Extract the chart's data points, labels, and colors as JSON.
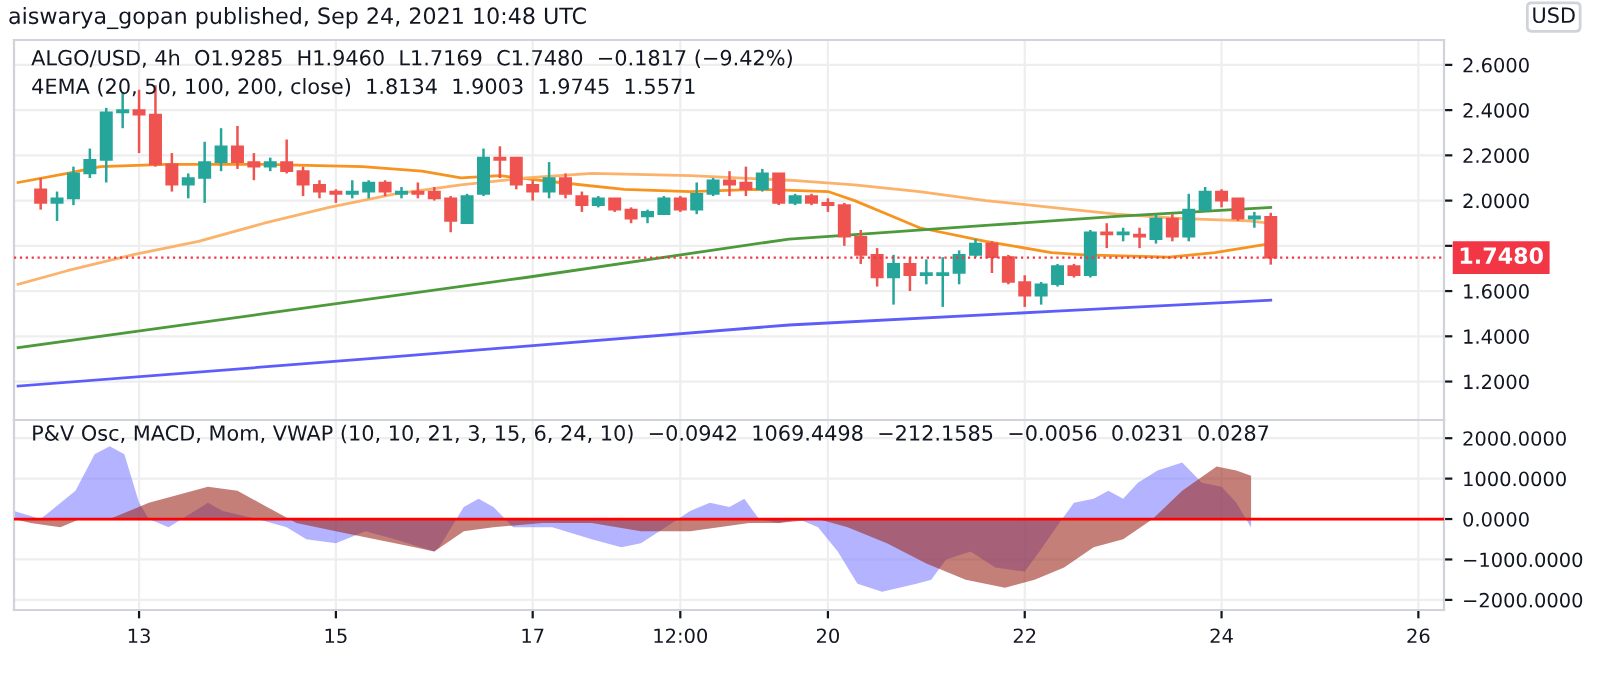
{
  "chart_data": [
    {
      "type": "candlestick",
      "title": "aiswarya_gopan published, Sep 24, 2021 10:48 UTC",
      "ylabel": "USD",
      "annotations": [
        "ALGO/USD, 4h  O1.9285  H1.9460  L1.7169  C1.7480  −0.1817 (−9.42%)",
        "4EMA (20, 50, 100, 200, close)  1.8134  1.9003  1.9745  1.5571"
      ],
      "x": [
        "2021-09-12T00:00",
        "2021-09-12T04:00",
        "2021-09-12T08:00",
        "2021-09-12T12:00",
        "2021-09-12T16:00",
        "2021-09-12T20:00",
        "2021-09-13T00:00",
        "2021-09-13T04:00",
        "2021-09-13T08:00",
        "2021-09-13T12:00",
        "2021-09-13T16:00",
        "2021-09-13T20:00",
        "2021-09-14T00:00",
        "2021-09-14T04:00",
        "2021-09-14T08:00",
        "2021-09-14T12:00",
        "2021-09-14T16:00",
        "2021-09-14T20:00",
        "2021-09-15T00:00",
        "2021-09-15T04:00",
        "2021-09-15T08:00",
        "2021-09-15T12:00",
        "2021-09-15T16:00",
        "2021-09-15T20:00",
        "2021-09-16T00:00",
        "2021-09-16T04:00",
        "2021-09-16T08:00",
        "2021-09-16T12:00",
        "2021-09-16T16:00",
        "2021-09-16T20:00",
        "2021-09-17T00:00",
        "2021-09-17T04:00",
        "2021-09-17T08:00",
        "2021-09-17T12:00",
        "2021-09-17T16:00",
        "2021-09-17T20:00",
        "2021-09-18T00:00",
        "2021-09-18T04:00",
        "2021-09-18T08:00",
        "2021-09-18T12:00",
        "2021-09-18T16:00",
        "2021-09-18T20:00",
        "2021-09-19T00:00",
        "2021-09-19T04:00",
        "2021-09-19T08:00",
        "2021-09-19T12:00",
        "2021-09-19T16:00",
        "2021-09-19T20:00",
        "2021-09-20T00:00",
        "2021-09-20T04:00",
        "2021-09-20T08:00",
        "2021-09-20T12:00",
        "2021-09-20T16:00",
        "2021-09-20T20:00",
        "2021-09-21T00:00",
        "2021-09-21T04:00",
        "2021-09-21T08:00",
        "2021-09-21T12:00",
        "2021-09-21T16:00",
        "2021-09-21T20:00",
        "2021-09-22T00:00",
        "2021-09-22T04:00",
        "2021-09-22T08:00",
        "2021-09-22T12:00",
        "2021-09-22T16:00",
        "2021-09-22T20:00",
        "2021-09-23T00:00",
        "2021-09-23T04:00",
        "2021-09-23T08:00",
        "2021-09-23T12:00",
        "2021-09-23T16:00",
        "2021-09-23T20:00",
        "2021-09-24T00:00",
        "2021-09-24T04:00",
        "2021-09-24T08:00",
        "2021-09-24T12:00"
      ],
      "ohlc": [
        [
          2.05,
          2.1,
          1.96,
          1.99
        ],
        [
          1.99,
          2.04,
          1.91,
          2.01
        ],
        [
          2.01,
          2.15,
          1.98,
          2.12
        ],
        [
          2.12,
          2.23,
          2.1,
          2.18
        ],
        [
          2.18,
          2.41,
          2.08,
          2.39
        ],
        [
          2.39,
          2.48,
          2.32,
          2.4
        ],
        [
          2.4,
          2.49,
          2.21,
          2.38
        ],
        [
          2.38,
          2.51,
          2.15,
          2.16
        ],
        [
          2.16,
          2.21,
          2.04,
          2.07
        ],
        [
          2.07,
          2.12,
          2.01,
          2.1
        ],
        [
          2.1,
          2.26,
          1.99,
          2.17
        ],
        [
          2.17,
          2.32,
          2.13,
          2.24
        ],
        [
          2.24,
          2.33,
          2.14,
          2.17
        ],
        [
          2.17,
          2.21,
          2.09,
          2.15
        ],
        [
          2.15,
          2.19,
          2.13,
          2.17
        ],
        [
          2.17,
          2.27,
          2.12,
          2.13
        ],
        [
          2.13,
          2.15,
          2.02,
          2.07
        ],
        [
          2.07,
          2.09,
          2.01,
          2.04
        ],
        [
          2.04,
          2.05,
          1.99,
          2.03
        ],
        [
          2.03,
          2.09,
          2.01,
          2.04
        ],
        [
          2.04,
          2.09,
          2.01,
          2.08
        ],
        [
          2.08,
          2.09,
          2.02,
          2.04
        ],
        [
          2.03,
          2.06,
          2.01,
          2.04
        ],
        [
          2.04,
          2.08,
          2.01,
          2.03
        ],
        [
          2.04,
          2.06,
          2.0,
          2.01
        ],
        [
          2.01,
          2.02,
          1.86,
          1.91
        ],
        [
          1.9,
          2.03,
          1.9,
          2.02
        ],
        [
          2.03,
          2.23,
          2.02,
          2.19
        ],
        [
          2.19,
          2.24,
          2.1,
          2.18
        ],
        [
          2.19,
          2.19,
          2.05,
          2.07
        ],
        [
          2.07,
          2.09,
          2.0,
          2.04
        ],
        [
          2.04,
          2.17,
          2.01,
          2.1
        ],
        [
          2.1,
          2.12,
          2.01,
          2.03
        ],
        [
          2.02,
          2.04,
          1.95,
          1.98
        ],
        [
          1.98,
          2.02,
          1.97,
          2.01
        ],
        [
          2.01,
          2.01,
          1.95,
          1.96
        ],
        [
          1.96,
          1.97,
          1.9,
          1.92
        ],
        [
          1.93,
          1.96,
          1.9,
          1.95
        ],
        [
          1.94,
          2.02,
          1.94,
          2.01
        ],
        [
          2.01,
          2.02,
          1.95,
          1.96
        ],
        [
          1.96,
          2.08,
          1.94,
          2.03
        ],
        [
          2.03,
          2.1,
          2.02,
          2.09
        ],
        [
          2.09,
          2.13,
          2.02,
          2.07
        ],
        [
          2.08,
          2.15,
          2.02,
          2.05
        ],
        [
          2.05,
          2.14,
          2.04,
          2.12
        ],
        [
          2.12,
          2.12,
          1.98,
          1.99
        ],
        [
          1.99,
          2.03,
          1.98,
          2.02
        ],
        [
          2.02,
          2.03,
          1.98,
          1.99
        ],
        [
          1.99,
          2.01,
          1.95,
          1.98
        ],
        [
          1.98,
          1.99,
          1.8,
          1.84
        ],
        [
          1.84,
          1.87,
          1.72,
          1.76
        ],
        [
          1.76,
          1.79,
          1.62,
          1.66
        ],
        [
          1.66,
          1.76,
          1.54,
          1.72
        ],
        [
          1.72,
          1.75,
          1.6,
          1.67
        ],
        [
          1.67,
          1.74,
          1.63,
          1.68
        ],
        [
          1.67,
          1.75,
          1.53,
          1.68
        ],
        [
          1.68,
          1.78,
          1.63,
          1.76
        ],
        [
          1.76,
          1.83,
          1.75,
          1.81
        ],
        [
          1.81,
          1.82,
          1.68,
          1.75
        ],
        [
          1.75,
          1.76,
          1.63,
          1.64
        ],
        [
          1.64,
          1.67,
          1.53,
          1.58
        ],
        [
          1.58,
          1.64,
          1.54,
          1.63
        ],
        [
          1.63,
          1.72,
          1.62,
          1.71
        ],
        [
          1.71,
          1.72,
          1.66,
          1.67
        ],
        [
          1.67,
          1.87,
          1.66,
          1.86
        ],
        [
          1.86,
          1.9,
          1.79,
          1.85
        ],
        [
          1.85,
          1.88,
          1.82,
          1.86
        ],
        [
          1.85,
          1.88,
          1.79,
          1.84
        ],
        [
          1.83,
          1.94,
          1.81,
          1.92
        ],
        [
          1.92,
          1.94,
          1.82,
          1.84
        ],
        [
          1.84,
          2.03,
          1.82,
          1.96
        ],
        [
          1.96,
          2.06,
          1.95,
          2.04
        ],
        [
          2.04,
          2.05,
          1.97,
          2.0
        ],
        [
          2.01,
          2.01,
          1.91,
          1.92
        ],
        [
          1.92,
          1.95,
          1.88,
          1.93
        ],
        [
          1.9285,
          1.946,
          1.7169,
          1.748
        ]
      ],
      "series": [
        {
          "type": "line",
          "color": "#f7931e",
          "x": [
            "2021-09-11T18:30",
            "2021-09-12T06:30",
            "2021-09-12T14:30",
            "2021-09-13T06:30",
            "2021-09-14T06:30",
            "2021-09-15T06:30",
            "2021-09-15T21:00",
            "2021-09-16T06:30",
            "2021-09-16T16:00",
            "2021-09-17T06:30",
            "2021-09-17T22:20",
            "2021-09-18T14:30",
            "2021-09-19T06:30",
            "2021-09-20T00:00",
            "2021-09-20T06:30",
            "2021-09-20T14:30",
            "2021-09-20T22:20",
            "2021-09-21T14:30",
            "2021-09-22T06:30",
            "2021-09-22T14:30",
            "2021-09-23T11:15",
            "2021-09-23T22:20",
            "2021-09-24T12:00"
          ],
          "values": [
            2.08,
            2.12,
            2.15,
            2.16,
            2.16,
            2.15,
            2.13,
            2.1,
            2.11,
            2.08,
            2.05,
            2.04,
            2.05,
            2.04,
            2.0,
            1.94,
            1.88,
            1.82,
            1.77,
            1.76,
            1.75,
            1.77,
            1.81
          ]
        },
        {
          "type": "line",
          "color": "#fbb36b",
          "x": [
            "2021-09-11T18:30",
            "2021-09-12T06:30",
            "2021-09-12T22:20",
            "2021-09-13T14:30",
            "2021-09-14T06:30",
            "2021-09-14T22:20",
            "2021-09-15T14:30",
            "2021-09-16T06:30",
            "2021-09-16T22:20",
            "2021-09-17T14:30",
            "2021-09-18T14:30",
            "2021-09-19T14:30",
            "2021-09-20T06:30",
            "2021-09-20T22:20",
            "2021-09-21T14:30",
            "2021-09-22T06:30",
            "2021-09-22T22:20",
            "2021-09-23T14:30",
            "2021-09-24T06:30",
            "2021-09-24T12:00"
          ],
          "values": [
            1.63,
            1.69,
            1.76,
            1.82,
            1.9,
            1.97,
            2.03,
            2.07,
            2.1,
            2.12,
            2.11,
            2.09,
            2.07,
            2.04,
            2.0,
            1.97,
            1.94,
            1.92,
            1.91,
            1.9
          ]
        },
        {
          "type": "line",
          "color": "#4c9a3c",
          "x": [
            "2021-09-11T18:30",
            "2021-09-14T06:30",
            "2021-09-16T22:20",
            "2021-09-19T14:30",
            "2021-09-20T06:30",
            "2021-09-21T14:30",
            "2021-09-22T22:20",
            "2021-09-24T12:00"
          ],
          "values": [
            1.35,
            1.5,
            1.66,
            1.83,
            1.85,
            1.89,
            1.93,
            1.97
          ]
        },
        {
          "type": "line",
          "color": "#5d5dfb",
          "x": [
            "2021-09-11T18:30",
            "2021-09-15T14:30",
            "2021-09-19T14:30",
            "2021-09-22T06:30",
            "2021-09-24T12:00"
          ],
          "values": [
            1.18,
            1.31,
            1.45,
            1.51,
            1.56
          ]
        }
      ],
      "ref_lines": [
        {
          "axis": "y",
          "value": 1.748,
          "label": "1.7480",
          "color": "#f23645",
          "line_style": "dotted"
        }
      ],
      "xlim": [
        "2021-09-11T17:30",
        "2021-09-26T06:15"
      ],
      "xticks": [
        {
          "value": "2021-09-13",
          "label": null
        },
        {
          "value": "2021-09-15",
          "label": null
        },
        {
          "value": "2021-09-17",
          "label": null
        },
        {
          "value": "2021-09-18T12:00",
          "label": null
        },
        {
          "value": "2021-09-20",
          "label": null
        },
        {
          "value": "2021-09-22",
          "label": null
        },
        {
          "value": "2021-09-24",
          "label": null
        },
        {
          "value": "2021-09-26",
          "label": null
        }
      ],
      "ylim": [
        1.03,
        2.71
      ],
      "yticks": [
        {
          "value": 1.2,
          "label": "1.2000"
        },
        {
          "value": 1.4,
          "label": "1.4000"
        },
        {
          "value": 1.6,
          "label": "1.6000"
        },
        {
          "value": 1.8,
          "label": null
        },
        {
          "value": 2.0,
          "label": "2.0000"
        },
        {
          "value": 2.2,
          "label": "2.2000"
        },
        {
          "value": 2.4,
          "label": "2.4000"
        },
        {
          "value": 2.6,
          "label": "2.6000"
        }
      ],
      "grid": true,
      "tick_labels": "y"
    },
    {
      "type": "area",
      "annotations": [
        "P&V Osc, MACD, Mom, VWAP (10, 10, 21, 3, 15, 6, 24, 10)  −0.0942  1069.4498  −212.1585  −0.0056  0.0231  0.0287"
      ],
      "series": [
        {
          "color": "#8080ff",
          "x": [
            "2021-09-11T17:30",
            "2021-09-12T00:00",
            "2021-09-12T08:30",
            "2021-09-12T13:10",
            "2021-09-12T16:50",
            "2021-09-12T20:25",
            "2021-09-13T00:00",
            "2021-09-13T02:24",
            "2021-09-13T07:12",
            "2021-09-13T12:00",
            "2021-09-13T16:48",
            "2021-09-13T20:24",
            "2021-09-14T04:48",
            "2021-09-14T12:00",
            "2021-09-14T16:48",
            "2021-09-15T00:00",
            "2021-09-15T07:12",
            "2021-09-15T14:24",
            "2021-09-16T00:00",
            "2021-09-16T01:12",
            "2021-09-16T07:12",
            "2021-09-16T10:48",
            "2021-09-16T14:24",
            "2021-09-16T19:12",
            "2021-09-17T04:48",
            "2021-09-17T14:24",
            "2021-09-17T21:36",
            "2021-09-18T02:24",
            "2021-09-18T08:24",
            "2021-09-18T14:24",
            "2021-09-18T19:12",
            "2021-09-19T00:00",
            "2021-09-19T03:36",
            "2021-09-19T07:12",
            "2021-09-19T12:00",
            "2021-09-19T16:48",
            "2021-09-19T21:36",
            "2021-09-20T02:24",
            "2021-09-20T07:12",
            "2021-09-20T13:12",
            "2021-09-20T21:36",
            "2021-09-21T01:12",
            "2021-09-21T04:48",
            "2021-09-21T10:48",
            "2021-09-21T16:48",
            "2021-09-22T00:00",
            "2021-09-22T03:36",
            "2021-09-22T08:24",
            "2021-09-22T12:00",
            "2021-09-22T16:48",
            "2021-09-22T20:24",
            "2021-09-23T00:00",
            "2021-09-23T03:36",
            "2021-09-23T08:24",
            "2021-09-23T14:24",
            "2021-09-23T19:12",
            "2021-09-24T00:00",
            "2021-09-24T03:36",
            "2021-09-24T07:12"
          ],
          "values": [
            200,
            0,
            700,
            1600,
            1800,
            1600,
            400,
            0,
            -200,
            100,
            400,
            200,
            0,
            -200,
            -500,
            -600,
            -300,
            -500,
            -800,
            -700,
            300,
            500,
            300,
            -200,
            -200,
            -500,
            -700,
            -600,
            -200,
            200,
            400,
            300,
            500,
            0,
            -100,
            0,
            -200,
            -800,
            -1600,
            -1800,
            -1600,
            -1500,
            -1000,
            -800,
            -1200,
            -1300,
            -800,
            -100,
            400,
            500,
            700,
            500,
            900,
            1200,
            1400,
            900,
            800,
            400,
            -212.1585
          ]
        },
        {
          "color": "#9c2a20",
          "x": [
            "2021-09-11T17:30",
            "2021-09-11T21:36",
            "2021-09-12T04:48",
            "2021-09-12T09:36",
            "2021-09-12T16:48",
            "2021-09-13T02:24",
            "2021-09-13T09:36",
            "2021-09-13T16:48",
            "2021-09-14T00:00",
            "2021-09-14T07:12",
            "2021-09-14T14:24",
            "2021-09-15T00:00",
            "2021-09-15T09:36",
            "2021-09-15T19:12",
            "2021-09-16T00:00",
            "2021-09-16T07:12",
            "2021-09-16T14:24",
            "2021-09-17T02:24",
            "2021-09-17T14:24",
            "2021-09-18T02:24",
            "2021-09-18T14:24",
            "2021-09-19T04:48",
            "2021-09-19T12:00",
            "2021-09-19T21:36",
            "2021-09-20T04:48",
            "2021-09-20T14:24",
            "2021-09-21T00:00",
            "2021-09-21T09:36",
            "2021-09-21T19:12",
            "2021-09-22T02:24",
            "2021-09-22T09:36",
            "2021-09-22T16:48",
            "2021-09-23T00:00",
            "2021-09-23T07:12",
            "2021-09-23T14:24",
            "2021-09-23T22:48",
            "2021-09-24T03:36",
            "2021-09-24T07:12"
          ],
          "values": [
            0,
            -100,
            -200,
            0,
            0,
            400,
            600,
            800,
            700,
            300,
            -100,
            -300,
            -500,
            -700,
            -800,
            -300,
            -200,
            -100,
            -100,
            -300,
            -300,
            -100,
            -100,
            0,
            -200,
            -600,
            -1100,
            -1500,
            -1700,
            -1500,
            -1200,
            -700,
            -500,
            0,
            700,
            1300,
            1200,
            1069.4498
          ]
        }
      ],
      "ref_lines": [
        {
          "axis": "y",
          "value": 0,
          "color": "#ff0000",
          "line_style": "solid"
        }
      ],
      "xlim": [
        "2021-09-11T17:30",
        "2021-09-26T06:15"
      ],
      "xticks": [
        {
          "value": "2021-09-13",
          "label": "13"
        },
        {
          "value": "2021-09-15",
          "label": "15"
        },
        {
          "value": "2021-09-17",
          "label": "17"
        },
        {
          "value": "2021-09-18T12:00",
          "label": "12:00"
        },
        {
          "value": "2021-09-20",
          "label": "20"
        },
        {
          "value": "2021-09-22",
          "label": "22"
        },
        {
          "value": "2021-09-24",
          "label": "24"
        },
        {
          "value": "2021-09-26",
          "label": "26"
        }
      ],
      "ylim": [
        -2250,
        2450
      ],
      "yticks": [
        {
          "value": -2000,
          "label": "−2000.0000"
        },
        {
          "value": -1000,
          "label": "−1000.0000"
        },
        {
          "value": 0,
          "label": "0.0000"
        },
        {
          "value": 1000,
          "label": "1000.0000"
        },
        {
          "value": 2000,
          "label": "2000.0000"
        }
      ],
      "grid": true
    }
  ]
}
